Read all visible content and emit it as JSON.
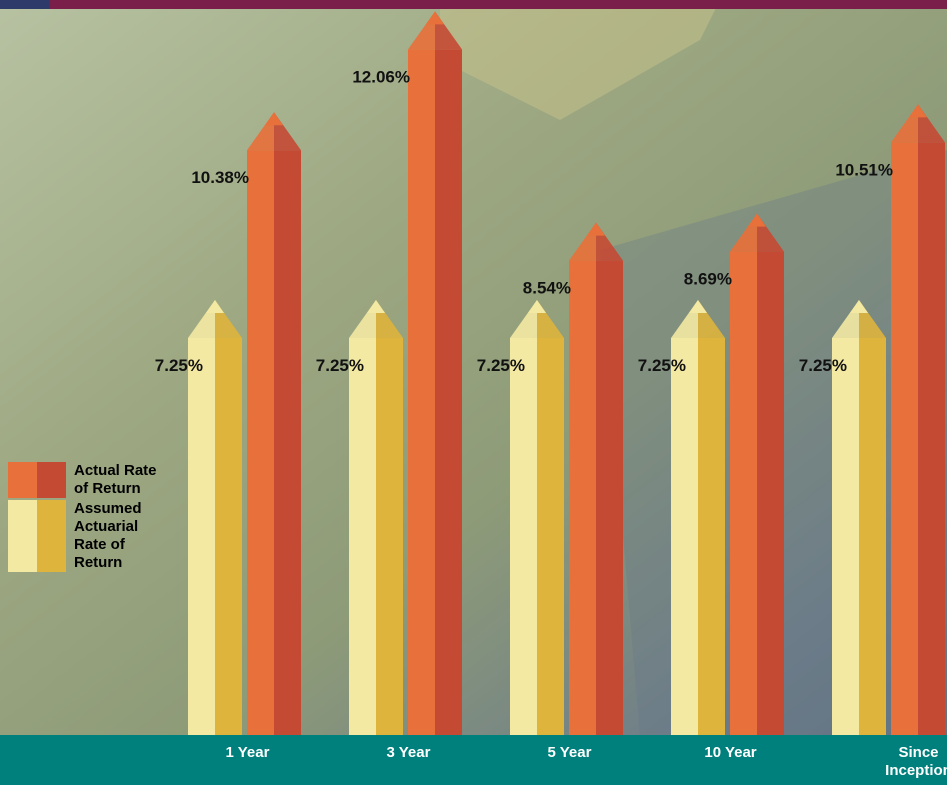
{
  "chart_data": {
    "type": "bar",
    "categories": [
      "1 Year",
      "3 Year",
      "5 Year",
      "10 Year",
      "Since Inception"
    ],
    "series": [
      {
        "name": "Assumed Actuarial Rate of Return",
        "color": "#f3e9a2",
        "color_dark": "#deb43c",
        "values": [
          7.25,
          7.25,
          7.25,
          7.25,
          7.25
        ],
        "value_labels": [
          "7.25%",
          "7.25%",
          "7.25%",
          "7.25%",
          "7.25%"
        ]
      },
      {
        "name": "Actual Rate of Return",
        "color": "#e8703a",
        "color_dark": "#c54a34",
        "values": [
          10.38,
          12.06,
          8.54,
          8.69,
          10.51
        ],
        "value_labels": [
          "10.38%",
          "12.06%",
          "8.54%",
          "8.69%",
          "10.51%"
        ]
      }
    ]
  }
}
